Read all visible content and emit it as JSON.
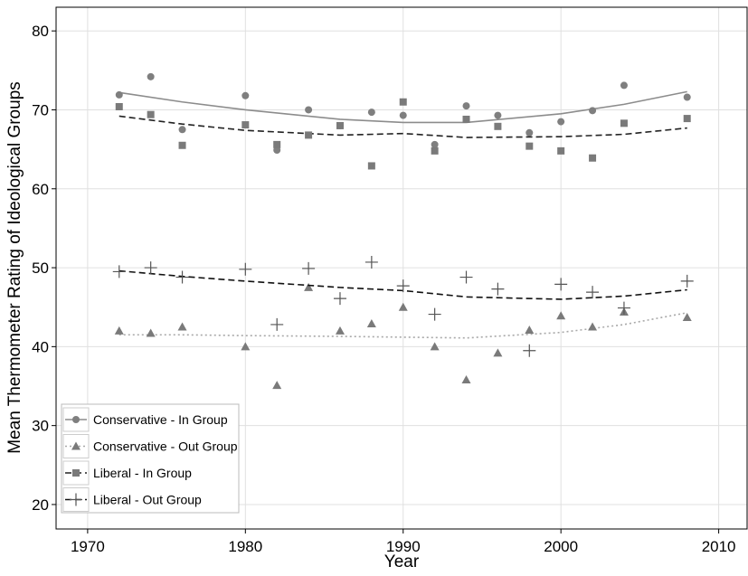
{
  "chart_data": {
    "type": "scatter",
    "x_label": "Year",
    "y_label": "Mean Thermometer Rating of Ideological Groups",
    "xlim": [
      1968,
      2011.8
    ],
    "ylim": [
      16.9,
      83
    ],
    "xticks": [
      1970,
      1980,
      1990,
      2000,
      2010
    ],
    "yticks": [
      20,
      30,
      40,
      50,
      60,
      70,
      80
    ],
    "grid": true,
    "legend_position": "bottom-left",
    "x": [
      1972,
      1974,
      1976,
      1980,
      1982,
      1984,
      1986,
      1988,
      1990,
      1992,
      1994,
      1996,
      1998,
      2000,
      2002,
      2004,
      2008
    ],
    "fit_x": [
      1972,
      1976,
      1980,
      1986,
      1990,
      1994,
      2000,
      2004,
      2008
    ],
    "series": [
      {
        "name": "Conservative - In Group",
        "color": "#7f7f7f",
        "line_color": "#8c8c8c",
        "marker": "circle",
        "line_style": "solid",
        "values": [
          71.9,
          74.2,
          67.5,
          71.8,
          64.9,
          70.0,
          68.0,
          69.7,
          69.3,
          65.6,
          70.5,
          69.3,
          67.1,
          68.5,
          69.9,
          73.1,
          71.6
        ],
        "fit_values": [
          72.2,
          71.0,
          70.0,
          68.8,
          68.4,
          68.4,
          69.5,
          70.7,
          72.3
        ]
      },
      {
        "name": "Conservative - Out Group",
        "color": "#7a7a7a",
        "line_color": "#a8a8a8",
        "marker": "triangle",
        "line_style": "dotted",
        "values": [
          42.0,
          41.7,
          42.5,
          40.0,
          35.1,
          47.5,
          42.0,
          42.9,
          45.0,
          40.0,
          35.8,
          39.2,
          42.1,
          43.9,
          42.5,
          44.4,
          43.7
        ],
        "fit_values": [
          41.5,
          41.5,
          41.4,
          41.3,
          41.2,
          41.1,
          41.8,
          42.8,
          44.3
        ]
      },
      {
        "name": "Liberal - In Group",
        "color": "#7a7a7a",
        "line_color": "#222222",
        "marker": "square",
        "line_style": "dashed",
        "values": [
          70.4,
          69.4,
          65.5,
          68.1,
          65.6,
          66.8,
          68.0,
          62.9,
          71.0,
          64.8,
          68.8,
          67.9,
          65.4,
          64.8,
          63.9,
          68.3,
          68.9
        ],
        "fit_values": [
          69.2,
          68.2,
          67.4,
          66.8,
          67.0,
          66.5,
          66.6,
          66.9,
          67.7
        ]
      },
      {
        "name": "Liberal - Out Group",
        "color": "#555555",
        "line_color": "#111111",
        "marker": "plus",
        "line_style": "dashed",
        "values": [
          49.5,
          50.0,
          48.8,
          49.8,
          42.8,
          49.9,
          46.1,
          50.7,
          47.7,
          44.1,
          48.8,
          47.3,
          39.5,
          47.9,
          46.9,
          44.9,
          48.3
        ],
        "fit_values": [
          49.6,
          48.9,
          48.3,
          47.5,
          47.1,
          46.3,
          46.0,
          46.4,
          47.2
        ]
      }
    ]
  }
}
